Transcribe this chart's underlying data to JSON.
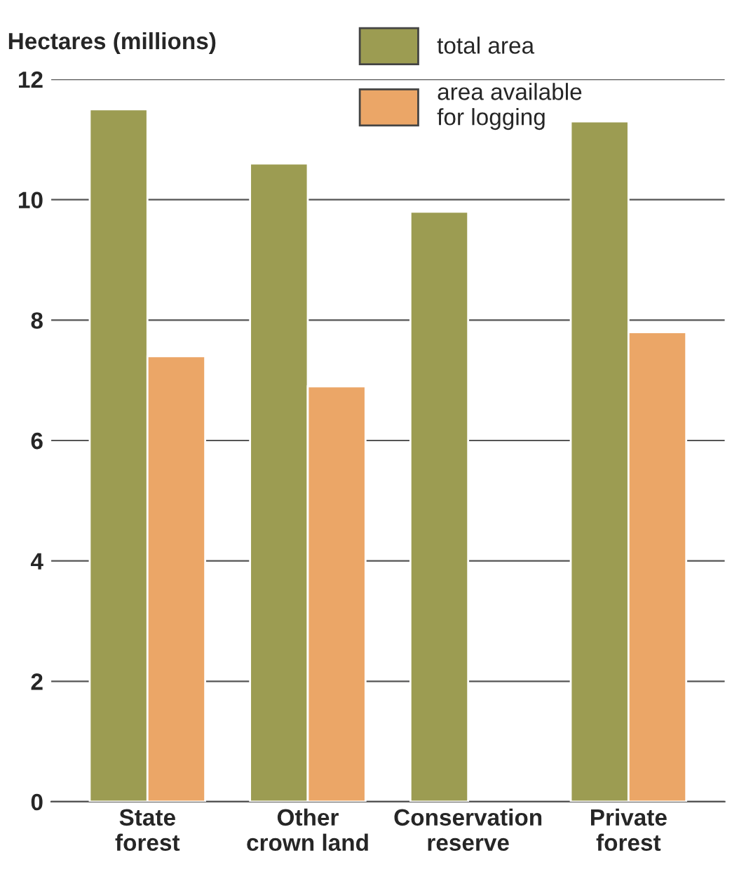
{
  "chart_data": {
    "type": "bar",
    "ylabel": "Hectares (millions)",
    "categories": [
      "State\nforest",
      "Other\ncrown land",
      "Conservation\nreserve",
      "Private\nforest"
    ],
    "series": [
      {
        "name": "total area",
        "color": "#9c9c52",
        "values": [
          11.5,
          10.6,
          9.8,
          11.3
        ]
      },
      {
        "name": "area available\nfor logging",
        "color": "#eba667",
        "values": [
          7.4,
          6.9,
          null,
          7.8
        ]
      }
    ],
    "ylim": [
      0,
      12
    ],
    "yticks": [
      0,
      2,
      4,
      6,
      8,
      10,
      12
    ],
    "grid": "y",
    "legend": "top right"
  }
}
